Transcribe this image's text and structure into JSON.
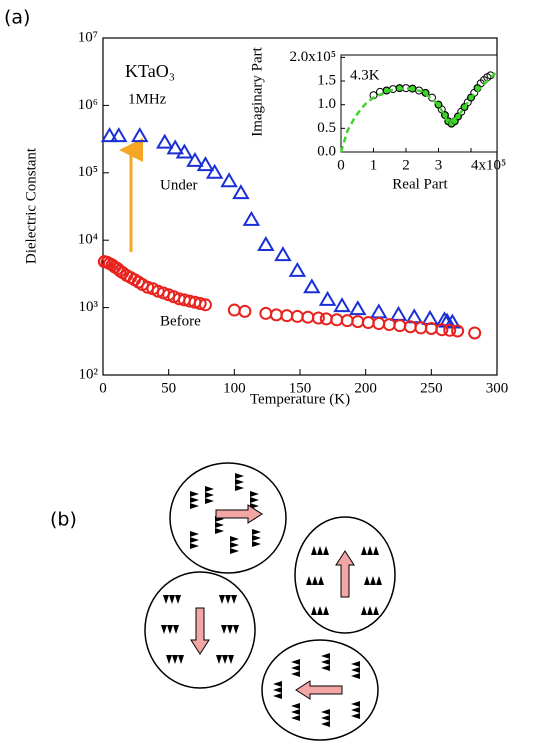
{
  "panels": {
    "a": "(a)",
    "b": "(b)"
  },
  "chart_data": [
    {
      "type": "scatter",
      "x_label": "Temperature (K)",
      "y_label": "Dielectric Constant",
      "annotations": [
        "KTaO₃",
        "1MHz"
      ],
      "xlim": [
        0,
        300
      ],
      "xticks": [
        0,
        50,
        100,
        150,
        200,
        250,
        300
      ],
      "ylim": [
        100,
        10000000
      ],
      "log_y": true,
      "yticks": [
        {
          "value": 100,
          "label": "10²"
        },
        {
          "value": 1000,
          "label": "10³"
        },
        {
          "value": 10000,
          "label": "10⁴"
        },
        {
          "value": 100000,
          "label": "10⁵"
        },
        {
          "value": 1000000,
          "label": "10⁶"
        },
        {
          "value": 10000000,
          "label": "10⁷"
        }
      ],
      "series": [
        {
          "name": "Under",
          "color": "#1a2fd6",
          "marker": "triangle",
          "x": [
            5,
            12,
            28,
            47,
            55,
            62,
            70,
            78,
            85,
            96,
            105,
            113,
            124,
            137,
            148,
            159,
            171,
            182,
            194,
            210,
            225,
            237,
            249,
            260,
            262,
            266
          ],
          "values": [
            350000,
            350000,
            350000,
            280000,
            230000,
            200000,
            150000,
            130000,
            100000,
            75000,
            50000,
            20000,
            8500,
            6000,
            3500,
            2000,
            1300,
            1050,
            950,
            850,
            780,
            720,
            680,
            650,
            620,
            600
          ]
        },
        {
          "name": "Before",
          "color": "#e8231e",
          "marker": "circle",
          "x": [
            1,
            3,
            5,
            7,
            9,
            11,
            13,
            15,
            18,
            21,
            24,
            27,
            30,
            34,
            38,
            42,
            46,
            50,
            54,
            58,
            62,
            66,
            70,
            74,
            78,
            100,
            108,
            124,
            132,
            140,
            148,
            156,
            164,
            170,
            178,
            186,
            194,
            202,
            210,
            218,
            226,
            234,
            242,
            250,
            258,
            264,
            270,
            283
          ],
          "values": [
            4800,
            4700,
            4500,
            4300,
            4000,
            3800,
            3500,
            3300,
            3000,
            2800,
            2600,
            2400,
            2200,
            2000,
            1900,
            1750,
            1650,
            1550,
            1450,
            1350,
            1300,
            1250,
            1200,
            1150,
            1100,
            920,
            880,
            820,
            780,
            760,
            740,
            720,
            700,
            680,
            660,
            640,
            620,
            600,
            580,
            560,
            540,
            520,
            500,
            490,
            470,
            460,
            450,
            420
          ]
        }
      ]
    },
    {
      "type": "scatter",
      "x_label": "Real Part",
      "y_label": "Imaginary Part",
      "annotations": [
        "4.3K"
      ],
      "xlim": [
        0,
        480000
      ],
      "xticks": [
        0,
        {
          "value": 100000,
          "label": "1"
        },
        {
          "value": 200000,
          "label": "2"
        },
        {
          "value": 300000,
          "label": "3"
        },
        {
          "value": 400000,
          "label": "4x10⁵"
        }
      ],
      "ylim": [
        0,
        205000
      ],
      "yticks": [
        {
          "value": 0,
          "label": "0.0"
        },
        {
          "value": 50000,
          "label": "0.5"
        },
        {
          "value": 100000,
          "label": "1.0"
        },
        {
          "value": 150000,
          "label": "1.5"
        },
        {
          "value": 200000,
          "label": "2.0x10⁵"
        }
      ],
      "series": [
        {
          "color": "#000000",
          "marker": "circle",
          "x": [
            100000,
            120000,
            140000,
            160000,
            180000,
            200000,
            220000,
            240000,
            260000,
            280000,
            300000,
            310000,
            320000,
            330000,
            340000,
            350000,
            360000,
            370000,
            380000,
            390000,
            400000,
            410000,
            420000,
            430000,
            440000,
            450000,
            460000
          ],
          "values": [
            120000,
            127000,
            130000,
            133000,
            135000,
            135000,
            134000,
            130000,
            125000,
            115000,
            100000,
            90000,
            78000,
            65000,
            60000,
            65000,
            75000,
            85000,
            95000,
            105000,
            115000,
            125000,
            135000,
            145000,
            152000,
            158000,
            162000
          ]
        },
        {
          "color": "#3ed42a",
          "marker": "dot",
          "x": [
            140000,
            180000,
            220000,
            260000,
            300000,
            320000,
            330000,
            340000,
            350000,
            360000,
            380000,
            400000,
            420000
          ],
          "values": [
            130000,
            135000,
            134000,
            125000,
            100000,
            78000,
            65000,
            60000,
            65000,
            75000,
            95000,
            115000,
            135000
          ]
        },
        {
          "color": "#3ed42a",
          "marker": "dashed-line",
          "x": [
            0,
            20000,
            40000,
            60000,
            80000,
            100000,
            150000,
            200000,
            250000,
            300000,
            330000,
            360000,
            400000,
            450000,
            480000
          ],
          "values": [
            0,
            45000,
            70000,
            90000,
            105000,
            115000,
            130000,
            135000,
            128000,
            100000,
            62000,
            75000,
            115000,
            150000,
            170000
          ]
        }
      ]
    }
  ]
}
